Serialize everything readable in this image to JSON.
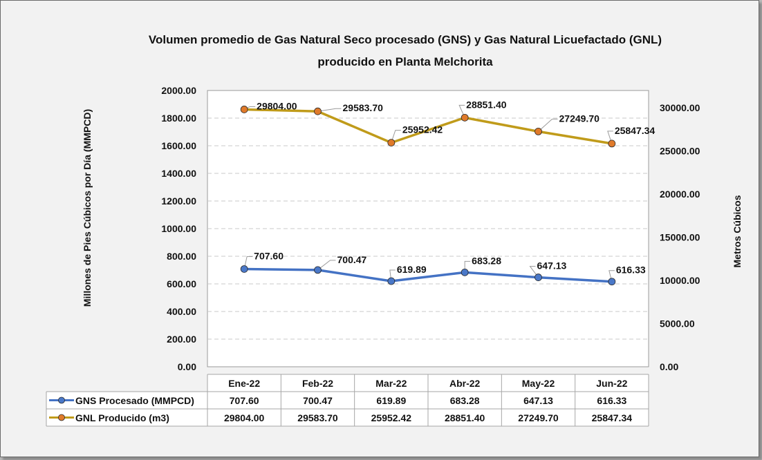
{
  "chart_data": {
    "type": "line",
    "title_line1": "Volumen promedio de Gas Natural Seco procesado (GNS) y Gas Natural Licuefactado (GNL)",
    "title_line2": "producido en Planta Melchorita",
    "ylabel": "Millones de Pies Cúbicos por Día (MMPCD)",
    "y2label": "Metros Cúbicos",
    "categories": [
      "Ene-22",
      "Feb-22",
      "Mar-22",
      "Abr-22",
      "May-22",
      "Jun-22"
    ],
    "ylim": [
      0,
      2000
    ],
    "y2lim": [
      0,
      32000
    ],
    "yticks": [
      "0.00",
      "200.00",
      "400.00",
      "600.00",
      "800.00",
      "1000.00",
      "1200.00",
      "1400.00",
      "1600.00",
      "1800.00",
      "2000.00"
    ],
    "y2ticks": [
      "0.00",
      "5000.00",
      "10000.00",
      "15000.00",
      "20000.00",
      "25000.00",
      "30000.00"
    ],
    "grid": true,
    "series": [
      {
        "name": "GNS Procesado (MMPCD)",
        "axis": "left",
        "color": "#4472c4",
        "marker_color": "#4a78c8",
        "values": [
          707.6,
          700.47,
          619.89,
          683.28,
          647.13,
          616.33
        ],
        "labels": [
          "707.60",
          "700.47",
          "619.89",
          "683.28",
          "647.13",
          "616.33"
        ]
      },
      {
        "name": "GNL Producido (m3)",
        "axis": "right",
        "color": "#c09b1a",
        "marker_color": "#e07a2a",
        "values": [
          29804.0,
          29583.7,
          25952.42,
          28851.4,
          27249.7,
          25847.34
        ],
        "labels": [
          "29804.00",
          "29583.70",
          "25952.42",
          "28851.40",
          "27249.70",
          "25847.34"
        ]
      }
    ]
  }
}
